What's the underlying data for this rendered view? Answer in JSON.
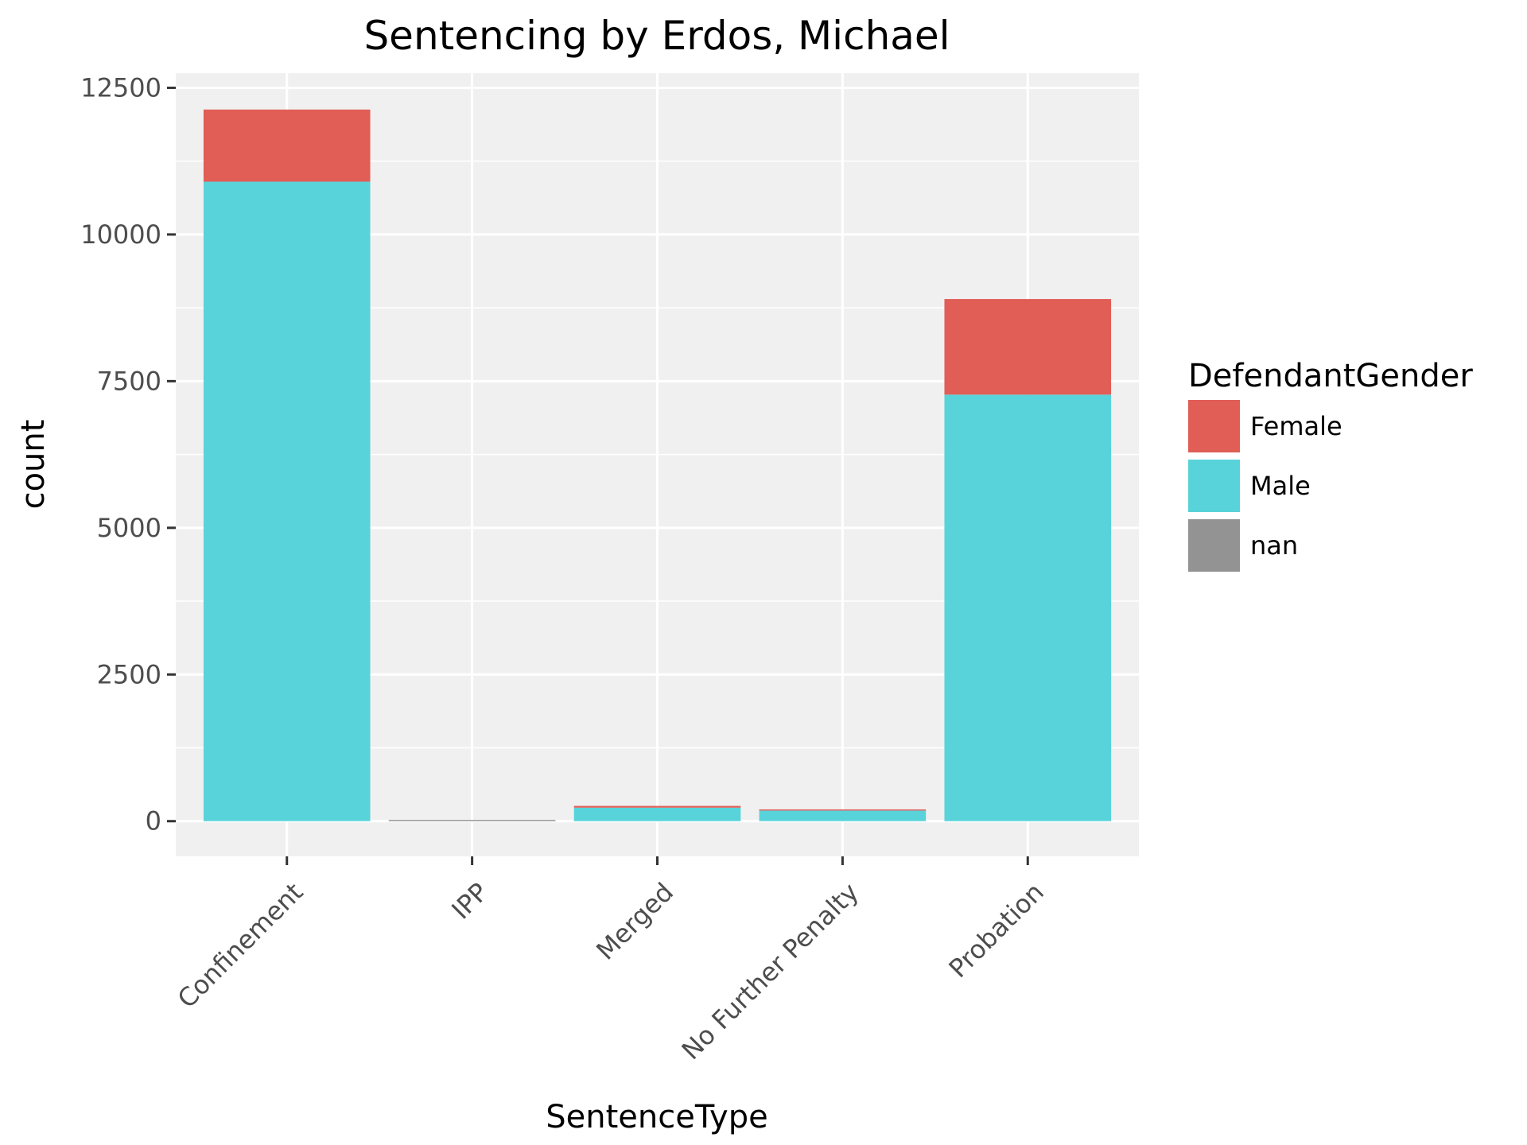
{
  "chart_data": {
    "type": "bar",
    "stacked": true,
    "title": "Sentencing by Erdos, Michael",
    "xlabel": "SentenceType",
    "ylabel": "count",
    "categories": [
      "Confinement",
      "IPP",
      "Merged",
      "No Further Penalty",
      "Probation"
    ],
    "series": [
      {
        "name": "Female",
        "color": "#E05E56",
        "values": [
          1230,
          0,
          30,
          20,
          1630
        ]
      },
      {
        "name": "Male",
        "color": "#59D3DA",
        "values": [
          10900,
          0,
          230,
          180,
          7270
        ]
      },
      {
        "name": "nan",
        "color": "#939393",
        "values": [
          0,
          3,
          0,
          0,
          0
        ]
      }
    ],
    "stack_order": [
      "Male",
      "nan",
      "Female"
    ],
    "ylim": [
      -600,
      12750
    ],
    "yticks": [
      0,
      2500,
      5000,
      7500,
      10000,
      12500
    ],
    "ytick_labels": [
      "0",
      "2500",
      "5000",
      "7500",
      "10000",
      "12500"
    ],
    "grid": true,
    "legend": {
      "title": "DefendantGender",
      "position": "right"
    }
  }
}
